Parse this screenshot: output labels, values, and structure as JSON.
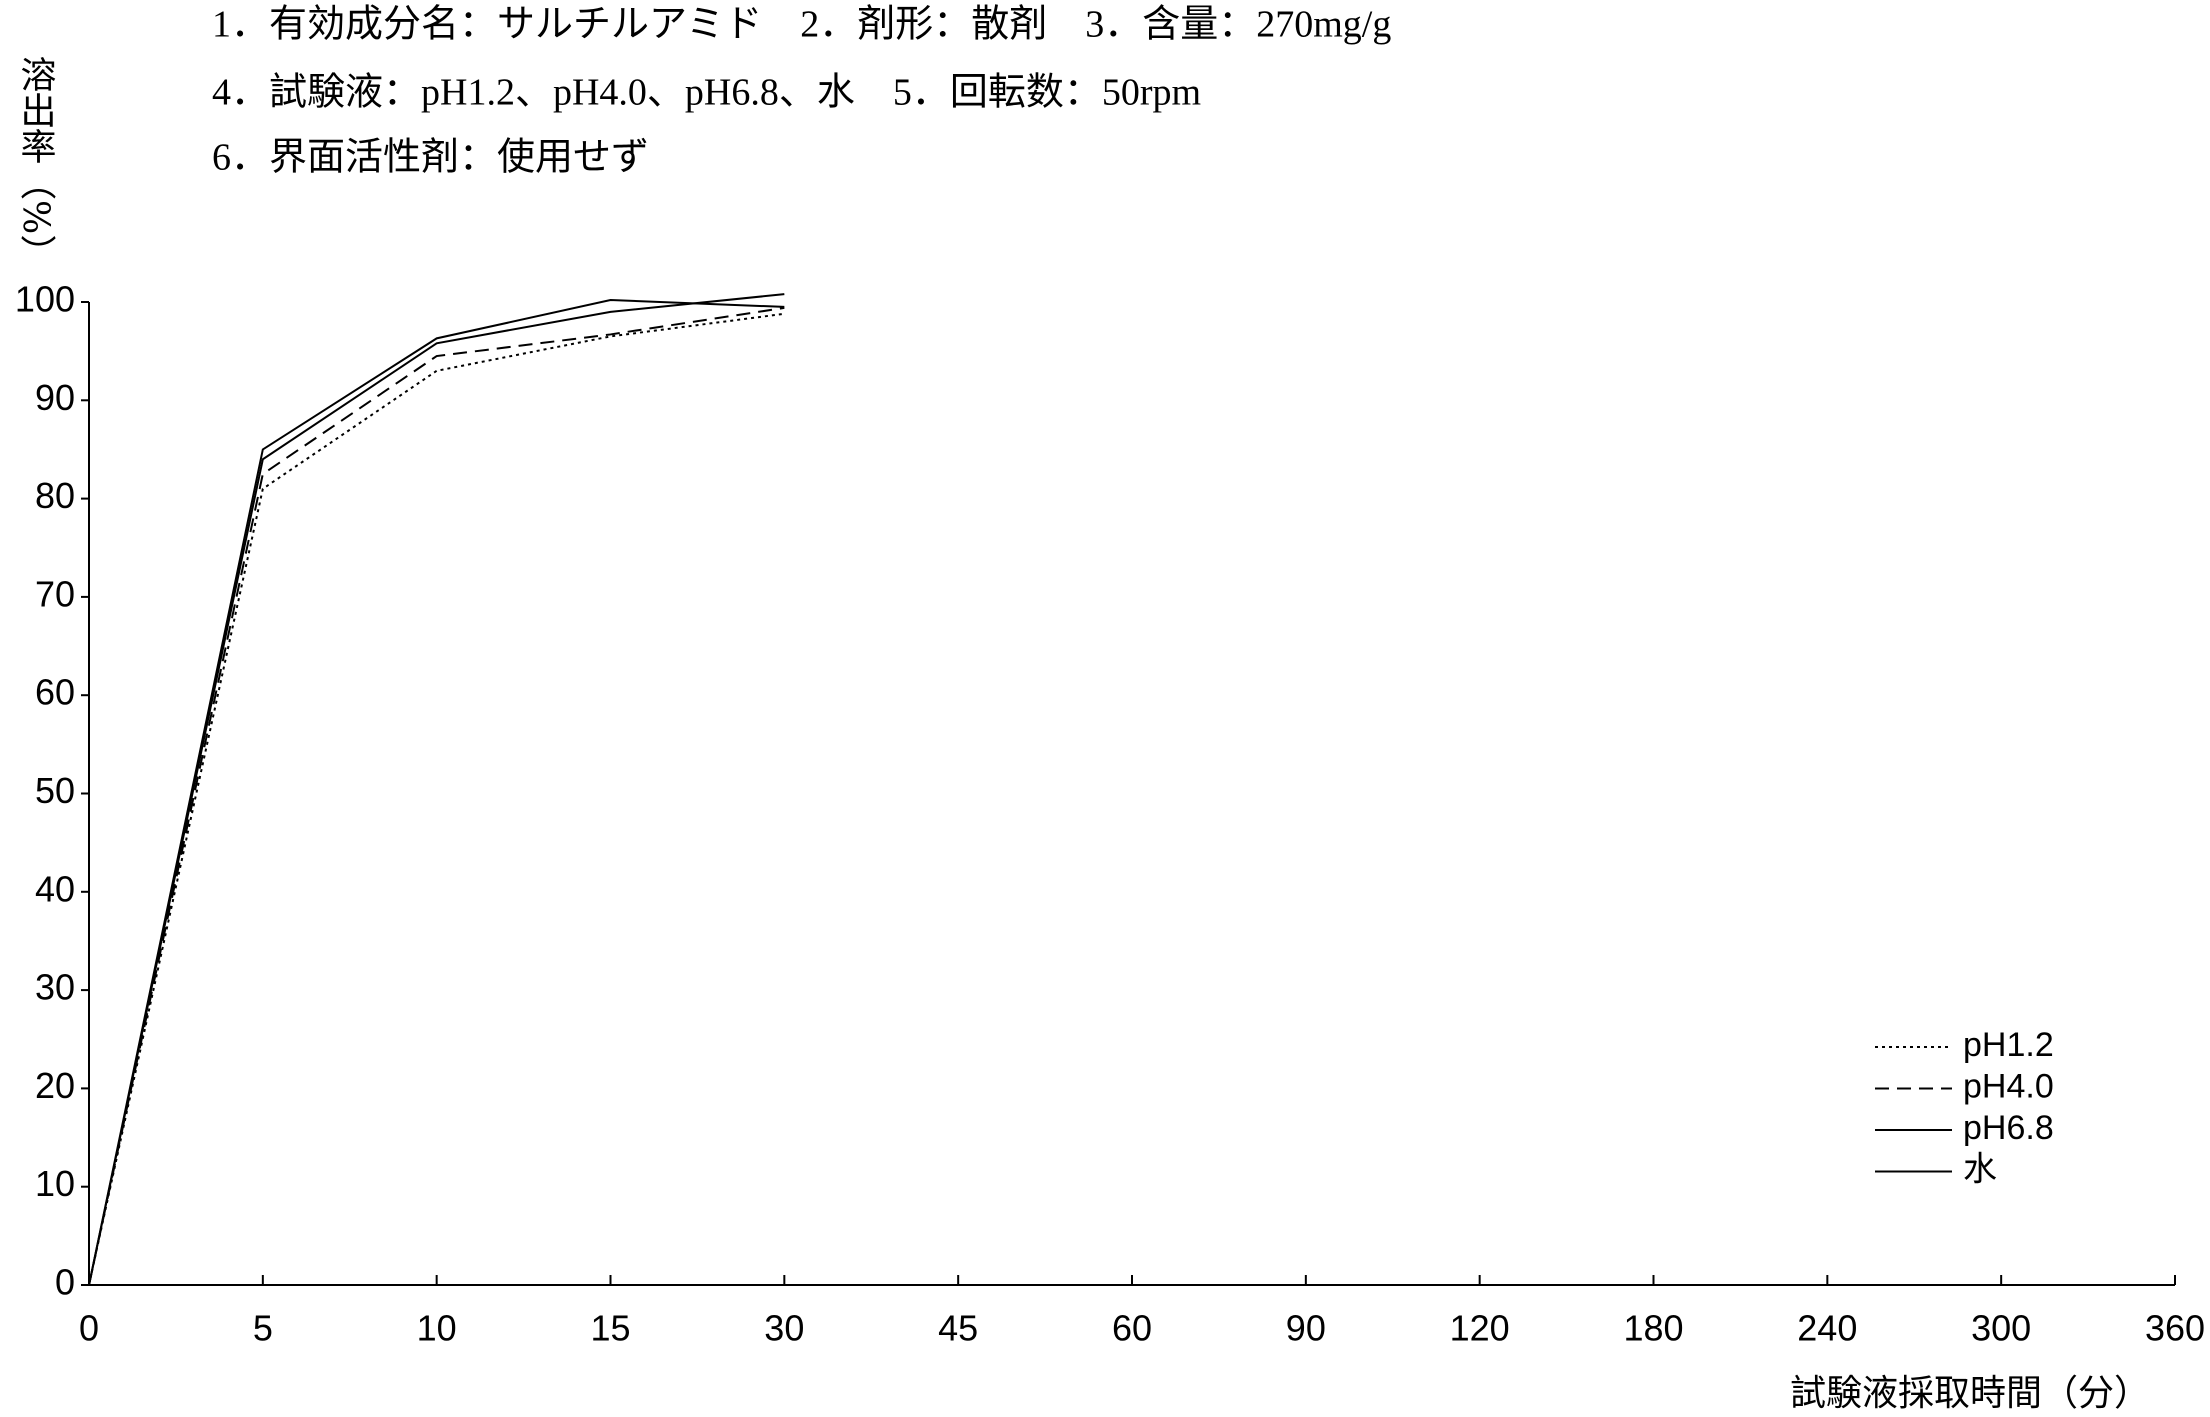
{
  "chart_data": {
    "type": "line",
    "title_lines": [
      "1．有効成分名：サルチルアミド　2．剤形：散剤　3．含量：270mg/g",
      "4．試験液：pH1.2、pH4.0、pH6.8、水　5．回転数：50rpm",
      "6．界面活性剤：使用せず"
    ],
    "y_label": "溶出率（%）",
    "x_label": "試験液採取時間（分）",
    "categories": [
      "0",
      "5",
      "10",
      "15",
      "30",
      "45",
      "60",
      "90",
      "120",
      "180",
      "240",
      "300",
      "360"
    ],
    "series": [
      {
        "name": "pH1.2",
        "color": "#000000",
        "style": "dotted",
        "values": [
          0,
          81,
          93,
          96.5,
          98.8,
          null,
          null,
          null,
          null,
          null,
          null,
          null,
          null
        ]
      },
      {
        "name": "pH4.0",
        "color": "#000000",
        "style": "dashed",
        "values": [
          0,
          82.5,
          94.5,
          96.7,
          99.4,
          null,
          null,
          null,
          null,
          null,
          null,
          null,
          null
        ]
      },
      {
        "name": "pH6.8",
        "color": "#000000",
        "style": "solid",
        "values": [
          0,
          85,
          96.3,
          100.2,
          99.5,
          null,
          null,
          null,
          null,
          null,
          null,
          null,
          null
        ]
      },
      {
        "name": "水",
        "color": "#000000",
        "style": "solid",
        "values": [
          0,
          84,
          95.8,
          99,
          100.8,
          null,
          null,
          null,
          null,
          null,
          null,
          null,
          null
        ]
      }
    ],
    "ylim": [
      0,
      100
    ],
    "yticks": [
      0,
      10,
      20,
      30,
      40,
      50,
      60,
      70,
      80,
      90,
      100
    ],
    "grid": false,
    "legend": "lower-right"
  }
}
